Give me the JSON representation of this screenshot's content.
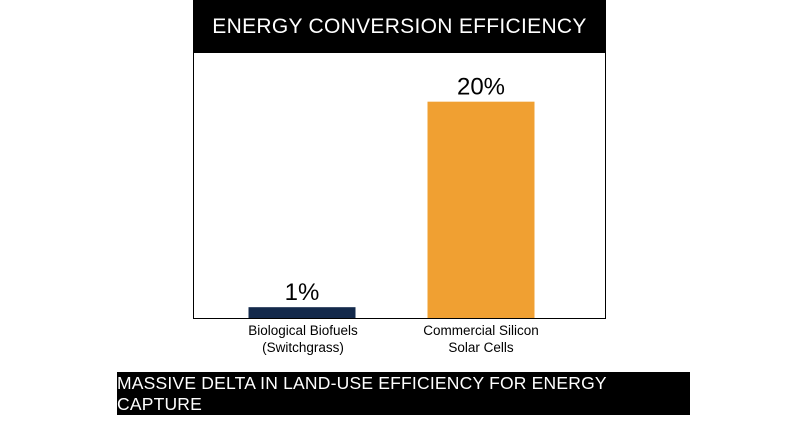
{
  "chart_data": {
    "type": "bar",
    "title": "ENERGY CONVERSION EFFICIENCY",
    "categories": [
      [
        "Biological Biofuels",
        "(Switchgrass)"
      ],
      [
        "Commercial Silicon",
        "Solar Cells"
      ]
    ],
    "values": [
      1,
      20
    ],
    "data_labels": [
      "1%",
      "20%"
    ],
    "ylim": [
      0,
      24.5
    ],
    "grid": false,
    "colors": [
      "#13294b",
      "#f0a032"
    ]
  },
  "footer": {
    "caption": "MASSIVE DELTA IN LAND-USE EFFICIENCY FOR ENERGY CAPTURE"
  }
}
